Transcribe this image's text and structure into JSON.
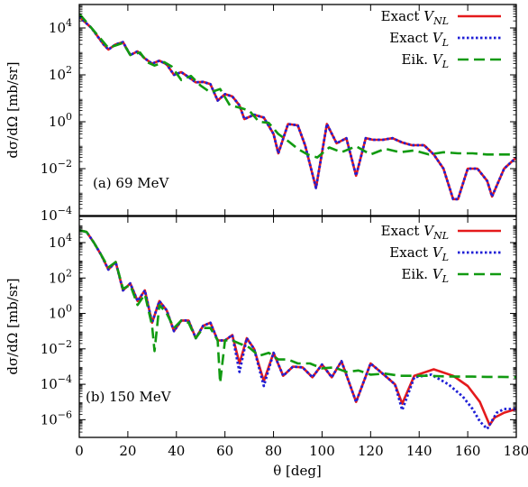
{
  "figure": {
    "x_label": "θ [deg]",
    "y_label": "dσ/dΩ [mb/sr]"
  },
  "colors": {
    "exact_nonlocal": "#e41a1c",
    "exact_local": "#1f1fd6",
    "eikonal_local": "#119a11"
  },
  "chart_data": [
    {
      "type": "line",
      "panel_label": "(a) 69 MeV",
      "xlabel": "",
      "ylabel": "dσ/dΩ [mb/sr]",
      "xlim": [
        0,
        180
      ],
      "ylim": [
        0.0001,
        100000
      ],
      "yscale": "log",
      "x_ticks": [],
      "y_ticks": [
        {
          "value": 0.0001,
          "mant": "10",
          "exp": "−4"
        },
        {
          "value": 0.01,
          "mant": "10",
          "exp": "−2"
        },
        {
          "value": 1,
          "mant": "10",
          "exp": "0"
        },
        {
          "value": 100,
          "mant": "10",
          "exp": "2"
        },
        {
          "value": 10000,
          "mant": "10",
          "exp": "4"
        }
      ],
      "legend_position": "top-right",
      "series": [
        {
          "name": "Exact",
          "name_sub": "V",
          "subscript": "NL",
          "color_key": "exact_nonlocal",
          "style": "solid",
          "x": [
            0,
            5,
            10,
            12,
            15,
            18,
            21,
            24,
            27,
            30,
            33,
            36,
            39,
            42,
            45,
            48,
            51,
            54,
            57,
            60,
            63,
            66,
            68,
            72,
            76,
            80,
            82,
            86,
            90,
            93,
            97.5,
            102,
            106,
            110,
            114,
            118,
            121,
            125,
            129,
            133,
            137,
            142,
            146,
            150,
            154,
            156,
            160,
            164,
            168,
            170,
            175,
            180
          ],
          "y": [
            30000,
            10000,
            2000,
            1200,
            2000,
            2500,
            700,
            1000,
            500,
            300,
            400,
            280,
            100,
            130,
            80,
            48,
            50,
            40,
            8,
            15,
            12,
            5,
            1.3,
            2,
            1.5,
            0.3,
            0.045,
            0.8,
            0.7,
            0.1,
            0.0015,
            0.8,
            0.12,
            0.2,
            0.005,
            0.2,
            0.17,
            0.17,
            0.2,
            0.13,
            0.1,
            0.1,
            0.04,
            0.01,
            0.0005,
            0.0005,
            0.01,
            0.01,
            0.003,
            0.00065,
            0.01,
            0.03
          ]
        },
        {
          "name": "Exact",
          "name_sub": "V",
          "subscript": "L",
          "color_key": "exact_local",
          "style": "dotted",
          "x": [
            0,
            5,
            10,
            12,
            15,
            18,
            21,
            24,
            27,
            30,
            33,
            36,
            39,
            42,
            45,
            48,
            51,
            54,
            57,
            60,
            63,
            66,
            68,
            72,
            76,
            80,
            82,
            86,
            90,
            93,
            97.5,
            102,
            106,
            110,
            114,
            118,
            121,
            125,
            129,
            133,
            137,
            142,
            146,
            150,
            154,
            156,
            160,
            164,
            168,
            170,
            175,
            180
          ],
          "y": [
            30000,
            10000,
            2000,
            1200,
            2000,
            2500,
            700,
            1000,
            500,
            300,
            400,
            280,
            100,
            130,
            80,
            48,
            50,
            40,
            8,
            15,
            12,
            5,
            1.3,
            2,
            1.5,
            0.3,
            0.045,
            0.8,
            0.7,
            0.1,
            0.0015,
            0.8,
            0.12,
            0.2,
            0.005,
            0.2,
            0.17,
            0.17,
            0.2,
            0.13,
            0.1,
            0.1,
            0.04,
            0.01,
            0.0005,
            0.0005,
            0.01,
            0.01,
            0.003,
            0.00065,
            0.01,
            0.03
          ]
        },
        {
          "name": "Eik.",
          "name_sub": "V",
          "subscript": "L",
          "color_key": "eikonal_local",
          "style": "dashed",
          "x": [
            0,
            5,
            10,
            12,
            15,
            18,
            21,
            25,
            28,
            31,
            35,
            38,
            42,
            46,
            50,
            54,
            58,
            62,
            66,
            70,
            74,
            78,
            82,
            86,
            90,
            94,
            98,
            103,
            108,
            114,
            120,
            126,
            132,
            138,
            144,
            150,
            156,
            162,
            168,
            174,
            180
          ],
          "y": [
            40000,
            10000,
            2500,
            1400,
            1800,
            2300,
            700,
            900,
            350,
            250,
            350,
            230,
            60,
            90,
            35,
            18,
            25,
            5,
            4,
            3,
            1,
            0.9,
            0.3,
            0.15,
            0.07,
            0.04,
            0.03,
            0.08,
            0.05,
            0.09,
            0.04,
            0.07,
            0.05,
            0.06,
            0.04,
            0.05,
            0.045,
            0.045,
            0.04,
            0.04,
            0.04
          ]
        }
      ]
    },
    {
      "type": "line",
      "panel_label": "(b) 150 MeV",
      "xlabel": "θ [deg]",
      "ylabel": "dσ/dΩ [mb/sr]",
      "xlim": [
        0,
        180
      ],
      "ylim": [
        1e-07,
        300000
      ],
      "yscale": "log",
      "x_ticks": [
        0,
        20,
        40,
        60,
        80,
        100,
        120,
        140,
        160,
        180
      ],
      "y_ticks": [
        {
          "value": 1e-06,
          "mant": "10",
          "exp": "−6"
        },
        {
          "value": 0.0001,
          "mant": "10",
          "exp": "−4"
        },
        {
          "value": 0.01,
          "mant": "10",
          "exp": "−2"
        },
        {
          "value": 1,
          "mant": "10",
          "exp": "0"
        },
        {
          "value": 100,
          "mant": "10",
          "exp": "2"
        },
        {
          "value": 10000,
          "mant": "10",
          "exp": "4"
        }
      ],
      "legend_position": "top-right",
      "series": [
        {
          "name": "Exact",
          "name_sub": "V",
          "subscript": "NL",
          "color_key": "exact_nonlocal",
          "style": "solid",
          "x": [
            0,
            3,
            6,
            9,
            12,
            15,
            18,
            21,
            24,
            27,
            30,
            33,
            36,
            39,
            42,
            45,
            48,
            51,
            54,
            57,
            60,
            63,
            66,
            69,
            72,
            76,
            80,
            84,
            88,
            92,
            96,
            100,
            104,
            108,
            114,
            120,
            126,
            130,
            133,
            138,
            146,
            154,
            160,
            165,
            169,
            171,
            175,
            180
          ],
          "y": [
            50000,
            40000,
            10000,
            2000,
            300,
            800,
            20,
            50,
            5,
            20,
            0.3,
            5,
            1.5,
            0.1,
            0.4,
            0.4,
            0.04,
            0.2,
            0.3,
            0.03,
            0.03,
            0.06,
            0.0015,
            0.04,
            0.01,
            0.00015,
            0.006,
            0.0003,
            0.001,
            0.0009,
            0.00025,
            0.0013,
            0.00025,
            0.002,
            1e-05,
            0.0015,
            0.0003,
            0.0001,
            8e-06,
            0.0003,
            0.0007,
            0.0003,
            8e-05,
            1e-05,
            5e-07,
            1.3e-06,
            2.5e-06,
            4e-06
          ]
        },
        {
          "name": "Exact",
          "name_sub": "V",
          "subscript": "L",
          "color_key": "exact_local",
          "style": "dotted",
          "x": [
            0,
            3,
            6,
            9,
            12,
            15,
            18,
            21,
            24,
            27,
            30,
            33,
            36,
            39,
            42,
            45,
            48,
            51,
            54,
            57,
            60,
            63,
            66,
            69,
            72,
            76,
            80,
            84,
            88,
            92,
            96,
            100,
            104,
            108,
            114,
            120,
            126,
            130,
            133,
            138,
            145,
            152,
            158,
            162,
            165,
            168,
            172,
            175,
            180
          ],
          "y": [
            50000,
            40000,
            10000,
            2000,
            300,
            800,
            20,
            50,
            5,
            20,
            0.3,
            5,
            1.5,
            0.1,
            0.4,
            0.4,
            0.04,
            0.2,
            0.3,
            0.03,
            0.03,
            0.06,
            0.0005,
            0.04,
            0.01,
            8e-05,
            0.006,
            0.0003,
            0.001,
            0.0009,
            0.00025,
            0.0013,
            0.00025,
            0.002,
            1e-05,
            0.0015,
            0.0003,
            0.0001,
            3.5e-06,
            0.00025,
            0.00035,
            0.0001,
            2e-05,
            4e-06,
            8e-07,
            3e-07,
            2.5e-06,
            4e-06,
            4e-06
          ]
        },
        {
          "name": "Eik.",
          "name_sub": "V",
          "subscript": "L",
          "color_key": "eikonal_local",
          "style": "dashed",
          "x": [
            0,
            3,
            6,
            9,
            12,
            15,
            18,
            21,
            24,
            27,
            30,
            31,
            33,
            36,
            39,
            42,
            45,
            48,
            51,
            54,
            57,
            58,
            60,
            63,
            66,
            70,
            74,
            78,
            82,
            86,
            90,
            95,
            100,
            105,
            110,
            115,
            120,
            126,
            132,
            138,
            144,
            150,
            156,
            162,
            168,
            174,
            180
          ],
          "y": [
            50000,
            40000,
            10000,
            2000,
            400,
            800,
            25,
            40,
            3,
            12,
            0.2,
            0.0075,
            3,
            1,
            0.15,
            0.4,
            0.3,
            0.04,
            0.15,
            0.15,
            0.03,
            0.00012,
            0.03,
            0.03,
            0.02,
            0.012,
            0.004,
            0.006,
            0.0025,
            0.0025,
            0.0015,
            0.0015,
            0.0008,
            0.0009,
            0.0005,
            0.0006,
            0.00035,
            0.0004,
            0.0003,
            0.0003,
            0.0003,
            0.00028,
            0.00027,
            0.00027,
            0.00026,
            0.00026,
            0.00025
          ]
        }
      ]
    }
  ]
}
